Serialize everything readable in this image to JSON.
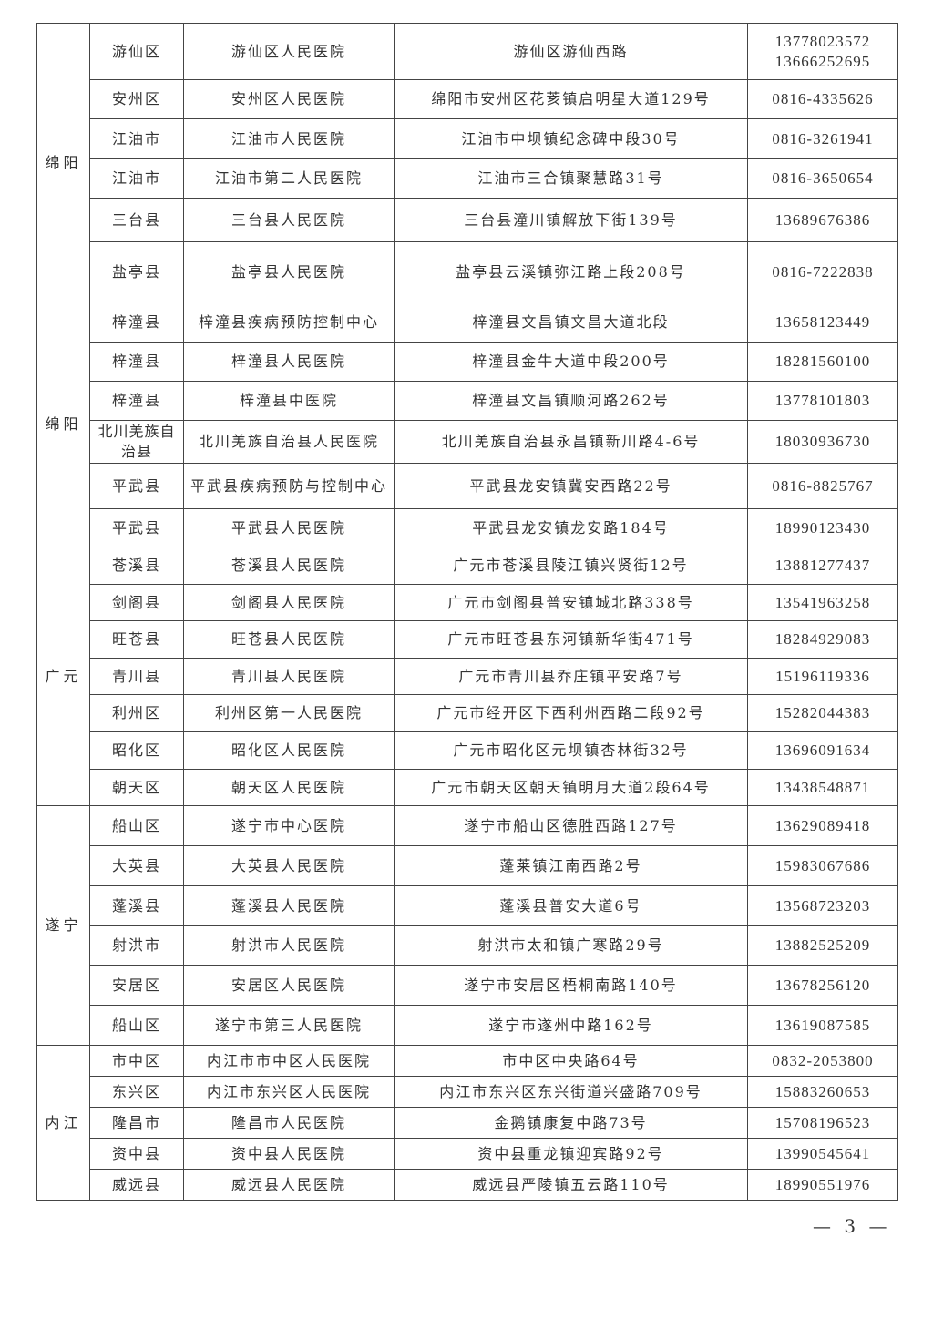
{
  "groups": [
    {
      "city": "绵阳",
      "rows": [
        {
          "district": "游仙区",
          "institution": "游仙区人民医院",
          "address": "游仙区游仙西路",
          "phone": "13778023572\n13666252695"
        },
        {
          "district": "安州区",
          "institution": "安州区人民医院",
          "address": "绵阳市安州区花荄镇启明星大道129号",
          "phone": "0816-4335626"
        },
        {
          "district": "江油市",
          "institution": "江油市人民医院",
          "address": "江油市中坝镇纪念碑中段30号",
          "phone": "0816-3261941"
        },
        {
          "district": "江油市",
          "institution": "江油市第二人民医院",
          "address": "江油市三合镇聚慧路31号",
          "phone": "0816-3650654"
        },
        {
          "district": "三台县",
          "institution": "三台县人民医院",
          "address": "三台县潼川镇解放下街139号",
          "phone": "13689676386"
        },
        {
          "district": "盐亭县",
          "institution": "盐亭县人民医院",
          "address": "盐亭县云溪镇弥江路上段208号",
          "phone": "0816-7222838"
        }
      ]
    },
    {
      "city": "绵阳",
      "rows": [
        {
          "district": "梓潼县",
          "institution": "梓潼县疾病预防控制中心",
          "address": "梓潼县文昌镇文昌大道北段",
          "phone": "13658123449"
        },
        {
          "district": "梓潼县",
          "institution": "梓潼县人民医院",
          "address": "梓潼县金牛大道中段200号",
          "phone": "18281560100"
        },
        {
          "district": "梓潼县",
          "institution": "梓潼县中医院",
          "address": "梓潼县文昌镇顺河路262号",
          "phone": "13778101803"
        },
        {
          "district": "北川羌族自治县",
          "institution": "北川羌族自治县人民医院",
          "address": "北川羌族自治县永昌镇新川路4-6号",
          "phone": "18030936730"
        },
        {
          "district": "平武县",
          "institution": "平武县疾病预防与控制中心",
          "address": "平武县龙安镇冀安西路22号",
          "phone": "0816-8825767"
        },
        {
          "district": "平武县",
          "institution": "平武县人民医院",
          "address": "平武县龙安镇龙安路184号",
          "phone": "18990123430"
        }
      ]
    },
    {
      "city": "广元",
      "rows": [
        {
          "district": "苍溪县",
          "institution": "苍溪县人民医院",
          "address": "广元市苍溪县陵江镇兴贤街12号",
          "phone": "13881277437"
        },
        {
          "district": "剑阁县",
          "institution": "剑阁县人民医院",
          "address": "广元市剑阁县普安镇城北路338号",
          "phone": "13541963258"
        },
        {
          "district": "旺苍县",
          "institution": "旺苍县人民医院",
          "address": "广元市旺苍县东河镇新华街471号",
          "phone": "18284929083"
        },
        {
          "district": "青川县",
          "institution": "青川县人民医院",
          "address": "广元市青川县乔庄镇平安路7号",
          "phone": "15196119336"
        },
        {
          "district": "利州区",
          "institution": "利州区第一人民医院",
          "address": "广元市经开区下西利州西路二段92号",
          "phone": "15282044383"
        },
        {
          "district": "昭化区",
          "institution": "昭化区人民医院",
          "address": "广元市昭化区元坝镇杏林街32号",
          "phone": "13696091634"
        },
        {
          "district": "朝天区",
          "institution": "朝天区人民医院",
          "address": "广元市朝天区朝天镇明月大道2段64号",
          "phone": "13438548871"
        }
      ]
    },
    {
      "city": "遂宁",
      "rows": [
        {
          "district": "船山区",
          "institution": "遂宁市中心医院",
          "address": "遂宁市船山区德胜西路127号",
          "phone": "13629089418"
        },
        {
          "district": "大英县",
          "institution": "大英县人民医院",
          "address": "蓬莱镇江南西路2号",
          "phone": "15983067686"
        },
        {
          "district": "蓬溪县",
          "institution": "蓬溪县人民医院",
          "address": "蓬溪县普安大道6号",
          "phone": "13568723203"
        },
        {
          "district": "射洪市",
          "institution": "射洪市人民医院",
          "address": "射洪市太和镇广寒路29号",
          "phone": "13882525209"
        },
        {
          "district": "安居区",
          "institution": "安居区人民医院",
          "address": "遂宁市安居区梧桐南路140号",
          "phone": "13678256120"
        },
        {
          "district": "船山区",
          "institution": "遂宁市第三人民医院",
          "address": "遂宁市遂州中路162号",
          "phone": "13619087585"
        }
      ]
    },
    {
      "city": "内江",
      "rows": [
        {
          "district": "市中区",
          "institution": "内江市市中区人民医院",
          "address": "市中区中央路64号",
          "phone": "0832-2053800"
        },
        {
          "district": "东兴区",
          "institution": "内江市东兴区人民医院",
          "address": "内江市东兴区东兴街道兴盛路709号",
          "phone": "15883260653"
        },
        {
          "district": "隆昌市",
          "institution": "隆昌市人民医院",
          "address": "金鹅镇康复中路73号",
          "phone": "15708196523"
        },
        {
          "district": "资中县",
          "institution": "资中县人民医院",
          "address": "资中县重龙镇迎宾路92号",
          "phone": "13990545641"
        },
        {
          "district": "威远县",
          "institution": "威远县人民医院",
          "address": "威远县严陵镇五云路110号",
          "phone": "18990551976"
        }
      ]
    }
  ],
  "page_number": "— 3 —"
}
